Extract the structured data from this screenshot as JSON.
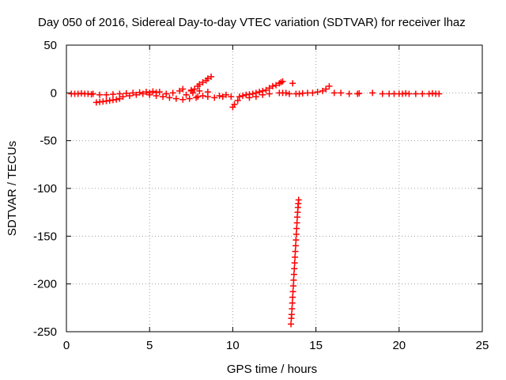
{
  "chart_data": {
    "type": "scatter",
    "title": "Day 050 of 2016, Sidereal Day-to-day VTEC variation (SDTVAR) for receiver lhaz",
    "xlabel": "GPS time / hours",
    "ylabel": "SDTVAR / TECUs",
    "xlim": [
      0,
      25
    ],
    "ylim": [
      -250,
      50
    ],
    "xticks": [
      0,
      5,
      10,
      15,
      20,
      25
    ],
    "yticks": [
      50,
      0,
      -50,
      -100,
      -150,
      -200,
      -250
    ],
    "grid": true,
    "marker": "+",
    "series": [
      {
        "name": "SDTVAR",
        "color": "#ff0000",
        "points": [
          [
            0.3,
            -1
          ],
          [
            0.5,
            -1
          ],
          [
            0.7,
            -1
          ],
          [
            0.9,
            -0.5
          ],
          [
            1.1,
            -1
          ],
          [
            1.3,
            -1
          ],
          [
            1.5,
            -1.5
          ],
          [
            1.6,
            -1
          ],
          [
            1.8,
            -10
          ],
          [
            2.0,
            -9.5
          ],
          [
            2.2,
            -9
          ],
          [
            2.4,
            -8.5
          ],
          [
            2.6,
            -8
          ],
          [
            2.8,
            -7.5
          ],
          [
            3.0,
            -7
          ],
          [
            3.2,
            -6
          ],
          [
            2.0,
            -2
          ],
          [
            2.4,
            -2
          ],
          [
            2.8,
            -1.5
          ],
          [
            3.2,
            -1
          ],
          [
            3.6,
            -0.5
          ],
          [
            4.0,
            0
          ],
          [
            4.4,
            0.5
          ],
          [
            4.8,
            1
          ],
          [
            5.2,
            1.5
          ],
          [
            5.6,
            1
          ],
          [
            3.4,
            -4
          ],
          [
            3.8,
            -3
          ],
          [
            4.2,
            -2
          ],
          [
            4.6,
            -1
          ],
          [
            5.0,
            0
          ],
          [
            5.4,
            0.5
          ],
          [
            5.0,
            -2
          ],
          [
            5.4,
            -3
          ],
          [
            5.8,
            -4
          ],
          [
            6.2,
            -5
          ],
          [
            6.6,
            -6
          ],
          [
            7.0,
            -7
          ],
          [
            7.4,
            -6
          ],
          [
            7.8,
            -5
          ],
          [
            6.0,
            -1
          ],
          [
            6.4,
            0
          ],
          [
            6.8,
            2
          ],
          [
            7.2,
            -2
          ],
          [
            7.6,
            0
          ],
          [
            7.9,
            -4
          ],
          [
            8.2,
            -3
          ],
          [
            8.5,
            -4
          ],
          [
            8.9,
            -5
          ],
          [
            7.5,
            2
          ],
          [
            7.7,
            4
          ],
          [
            7.9,
            7
          ],
          [
            8.0,
            9
          ],
          [
            8.2,
            11
          ],
          [
            8.4,
            13
          ],
          [
            8.5,
            15
          ],
          [
            8.7,
            17
          ],
          [
            7.0,
            4
          ],
          [
            7.5,
            3
          ],
          [
            8.0,
            2
          ],
          [
            8.5,
            1
          ],
          [
            9.2,
            -3
          ],
          [
            9.4,
            -4
          ],
          [
            9.6,
            -2
          ],
          [
            9.9,
            -4
          ],
          [
            10.0,
            -15
          ],
          [
            10.1,
            -12
          ],
          [
            10.3,
            -8
          ],
          [
            10.4,
            -4
          ],
          [
            10.6,
            -3
          ],
          [
            10.8,
            -2
          ],
          [
            11.0,
            -1.5
          ],
          [
            11.2,
            -1
          ],
          [
            11.4,
            0
          ],
          [
            11.6,
            1
          ],
          [
            11.8,
            2
          ],
          [
            12.0,
            3
          ],
          [
            12.2,
            5
          ],
          [
            12.4,
            7
          ],
          [
            12.6,
            8
          ],
          [
            12.8,
            10
          ],
          [
            12.9,
            11
          ],
          [
            13.0,
            12
          ],
          [
            11.0,
            -5
          ],
          [
            11.4,
            -4
          ],
          [
            11.8,
            -2
          ],
          [
            12.2,
            -1
          ],
          [
            12.8,
            0
          ],
          [
            13.0,
            0
          ],
          [
            13.2,
            0
          ],
          [
            13.4,
            -1
          ],
          [
            13.6,
            10
          ],
          [
            13.8,
            -1
          ],
          [
            14.0,
            -1
          ],
          [
            14.2,
            -0.5
          ],
          [
            14.5,
            0
          ],
          [
            14.8,
            0
          ],
          [
            15.1,
            1
          ],
          [
            15.4,
            2
          ],
          [
            15.6,
            4
          ],
          [
            15.8,
            7
          ],
          [
            16.1,
            0
          ],
          [
            16.5,
            0
          ],
          [
            17.0,
            -1
          ],
          [
            17.5,
            -1
          ],
          [
            17.6,
            -0.5
          ],
          [
            18.4,
            0
          ],
          [
            19.0,
            -1
          ],
          [
            19.4,
            -1
          ],
          [
            19.7,
            -1
          ],
          [
            20.0,
            -1
          ],
          [
            20.2,
            -1
          ],
          [
            20.4,
            -0.5
          ],
          [
            20.6,
            -1
          ],
          [
            21.0,
            -1
          ],
          [
            21.4,
            -1
          ],
          [
            21.8,
            -1
          ],
          [
            22.0,
            -0.5
          ],
          [
            22.2,
            -1
          ],
          [
            22.4,
            -1
          ],
          [
            13.5,
            -242
          ],
          [
            13.52,
            -236
          ],
          [
            13.54,
            -232
          ],
          [
            13.56,
            -226
          ],
          [
            13.58,
            -220
          ],
          [
            13.6,
            -214
          ],
          [
            13.62,
            -208
          ],
          [
            13.64,
            -202
          ],
          [
            13.66,
            -196
          ],
          [
            13.68,
            -190
          ],
          [
            13.7,
            -184
          ],
          [
            13.72,
            -178
          ],
          [
            13.74,
            -172
          ],
          [
            13.76,
            -166
          ],
          [
            13.78,
            -160
          ],
          [
            13.8,
            -154
          ],
          [
            13.82,
            -148
          ],
          [
            13.84,
            -142
          ],
          [
            13.86,
            -136
          ],
          [
            13.88,
            -130
          ],
          [
            13.9,
            -125
          ],
          [
            13.92,
            -120
          ],
          [
            13.94,
            -116
          ],
          [
            13.96,
            -112
          ]
        ]
      }
    ]
  }
}
